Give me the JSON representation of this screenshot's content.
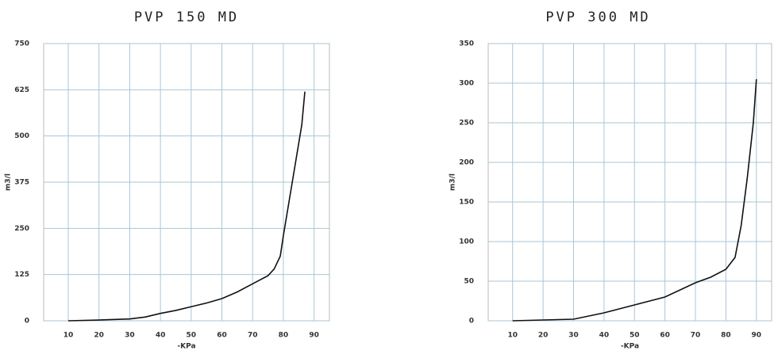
{
  "chart_data": [
    {
      "type": "line",
      "title": "PVP 150 MD",
      "x_label": "-KPa",
      "y_label": "m3/l",
      "x": [
        10,
        20,
        30,
        35,
        40,
        45,
        50,
        55,
        60,
        65,
        70,
        75,
        77,
        79,
        80,
        82,
        84,
        86,
        87
      ],
      "series": [
        {
          "name": "PVP 150 MD",
          "color": "#111111",
          "values": [
            0,
            2,
            5,
            10,
            20,
            28,
            38,
            48,
            60,
            78,
            100,
            122,
            140,
            175,
            230,
            330,
            430,
            530,
            620
          ]
        }
      ],
      "xlim": [
        2,
        95
      ],
      "xticks": [
        10,
        20,
        30,
        40,
        50,
        60,
        70,
        80,
        90
      ],
      "ylim": [
        0,
        750
      ],
      "yticks": [
        0,
        125,
        250,
        375,
        500,
        625,
        750
      ],
      "grid": true
    },
    {
      "type": "line",
      "title": "PVP 300 MD",
      "x_label": "-KPa",
      "y_label": "m3/l",
      "x": [
        10,
        20,
        30,
        40,
        50,
        60,
        70,
        75,
        80,
        83,
        85,
        87,
        89,
        90
      ],
      "series": [
        {
          "name": "PVP 300 MD",
          "color": "#111111",
          "values": [
            0,
            1,
            2,
            10,
            20,
            30,
            48,
            55,
            65,
            80,
            120,
            180,
            250,
            305
          ]
        }
      ],
      "xlim": [
        2,
        95
      ],
      "xticks": [
        10,
        20,
        30,
        40,
        50,
        60,
        70,
        80,
        90
      ],
      "ylim": [
        0,
        350
      ],
      "yticks": [
        0,
        50,
        100,
        150,
        200,
        250,
        300,
        350
      ],
      "grid": true
    }
  ]
}
